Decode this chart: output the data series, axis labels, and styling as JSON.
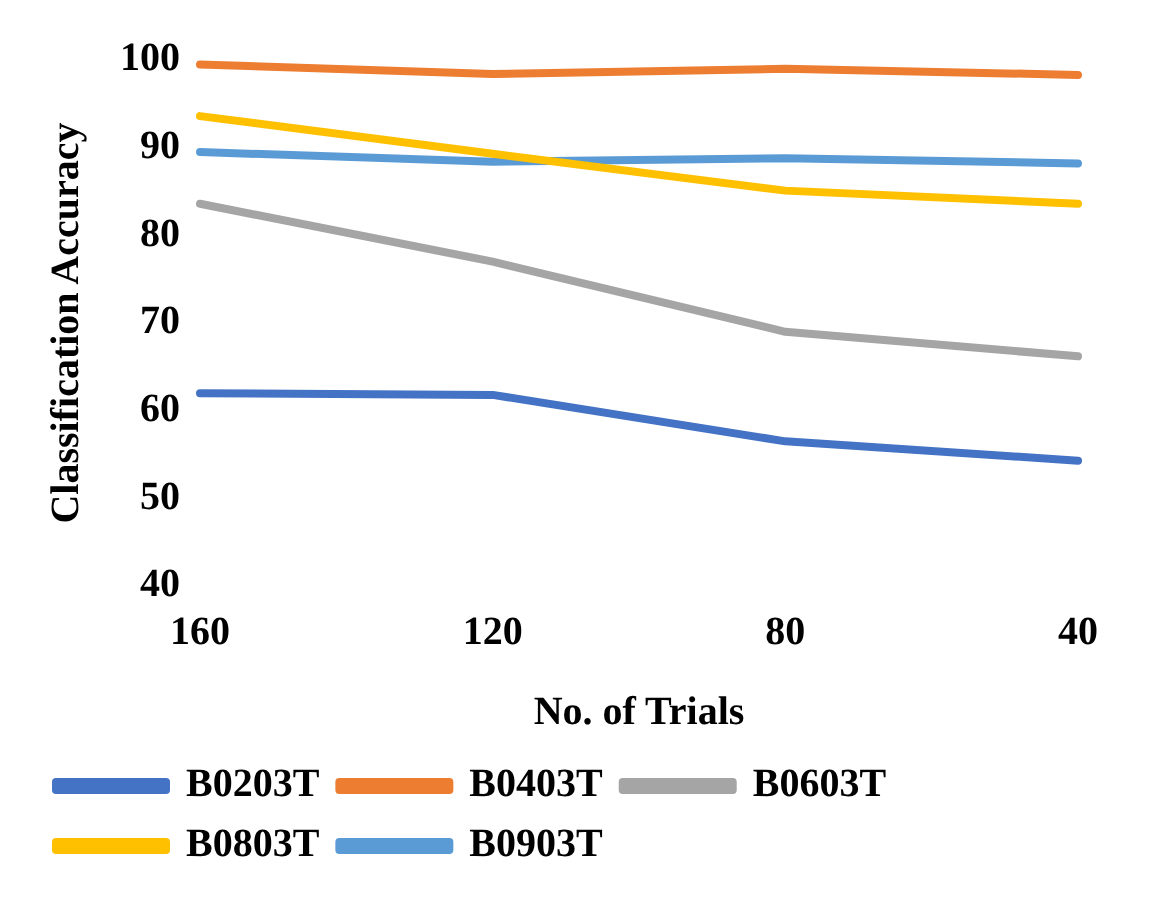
{
  "chart_data": {
    "type": "line",
    "xlabel": "No. of Trials",
    "ylabel": "Classification Accuracy",
    "categories": [
      "160",
      "120",
      "80",
      "40"
    ],
    "series": [
      {
        "name": "B0203T",
        "color": "#4472c4",
        "values": [
          62,
          61.8,
          56.5,
          54.3
        ]
      },
      {
        "name": "B0403T",
        "color": "#ed7d31",
        "values": [
          99.5,
          98.4,
          99,
          98.3
        ]
      },
      {
        "name": "B0603T",
        "color": "#a5a5a5",
        "values": [
          83.6,
          77,
          69,
          66.2
        ]
      },
      {
        "name": "B0803T",
        "color": "#ffc000",
        "values": [
          93.6,
          89.3,
          85.1,
          83.6
        ]
      },
      {
        "name": "B0903T",
        "color": "#5b9bd5",
        "values": [
          89.5,
          88.4,
          88.8,
          88.2
        ]
      }
    ],
    "ylim": [
      40,
      100
    ],
    "yticks": [
      40,
      50,
      60,
      70,
      80,
      90,
      100
    ],
    "grid": false,
    "legend": "bottom",
    "marker": "none",
    "line_style": "solid"
  }
}
